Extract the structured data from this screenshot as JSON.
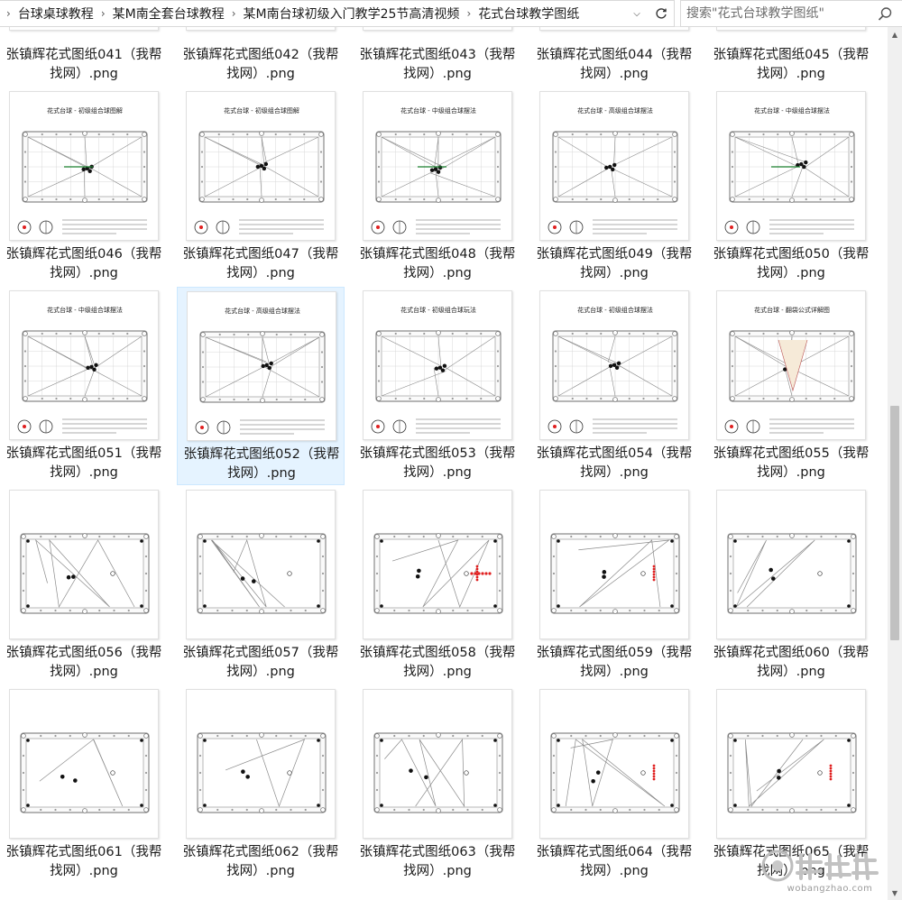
{
  "breadcrumb": [
    {
      "label": "台球桌球教程"
    },
    {
      "label": "某M南全套台球教程"
    },
    {
      "label": "某M南台球初级入门教学25节高清视频"
    },
    {
      "label": "花式台球教学图纸"
    }
  ],
  "search": {
    "placeholder": "搜索\"花式台球教学图纸\""
  },
  "files": [
    {
      "name": "张镇辉花式图纸041（我帮找网）.png",
      "kind": "diagram-bottom"
    },
    {
      "name": "张镇辉花式图纸042（我帮找网）.png",
      "kind": "diagram-bottom"
    },
    {
      "name": "张镇辉花式图纸043（我帮找网）.png",
      "kind": "diagram-bottom"
    },
    {
      "name": "张镇辉花式图纸044（我帮找网）.png",
      "kind": "diagram-bottom"
    },
    {
      "name": "张镇辉花式图纸045（我帮找网）.png",
      "kind": "diagram-bottom"
    },
    {
      "name": "张镇辉花式图纸046（我帮找网）.png",
      "kind": "diagram",
      "thumb_title": "花式台球 - 初级组合球图解"
    },
    {
      "name": "张镇辉花式图纸047（我帮找网）.png",
      "kind": "diagram",
      "thumb_title": "花式台球 - 初级组合球图解"
    },
    {
      "name": "张镇辉花式图纸048（我帮找网）.png",
      "kind": "diagram",
      "thumb_title": "花式台球 - 中级组合球摆法"
    },
    {
      "name": "张镇辉花式图纸049（我帮找网）.png",
      "kind": "diagram",
      "thumb_title": "花式台球 - 高级组合球摆法"
    },
    {
      "name": "张镇辉花式图纸050（我帮找网）.png",
      "kind": "diagram",
      "thumb_title": "花式台球 - 中级组合球摆法"
    },
    {
      "name": "张镇辉花式图纸051（我帮找网）.png",
      "kind": "diagram",
      "thumb_title": "花式台球 - 中级组合球摆法"
    },
    {
      "name": "张镇辉花式图纸052（我帮找网）.png",
      "kind": "diagram",
      "thumb_title": "花式台球 - 高级组合球摆法"
    },
    {
      "name": "张镇辉花式图纸053（我帮找网）.png",
      "kind": "diagram",
      "thumb_title": "花式台球 - 初级组合球玩法"
    },
    {
      "name": "张镇辉花式图纸054（我帮找网）.png",
      "kind": "diagram",
      "thumb_title": "花式台球 - 初级组合球摆法"
    },
    {
      "name": "张镇辉花式图纸055（我帮找网）.png",
      "kind": "diagram",
      "thumb_title": "花式台球 - 翻袋公式详解图"
    },
    {
      "name": "张镇辉花式图纸056（我帮找网）.png",
      "kind": "table"
    },
    {
      "name": "张镇辉花式图纸057（我帮找网）.png",
      "kind": "table"
    },
    {
      "name": "张镇辉花式图纸058（我帮找网）.png",
      "kind": "table"
    },
    {
      "name": "张镇辉花式图纸059（我帮找网）.png",
      "kind": "table"
    },
    {
      "name": "张镇辉花式图纸060（我帮找网）.png",
      "kind": "table"
    },
    {
      "name": "张镇辉花式图纸061（我帮找网）.png",
      "kind": "table"
    },
    {
      "name": "张镇辉花式图纸062（我帮找网）.png",
      "kind": "table"
    },
    {
      "name": "张镇辉花式图纸063（我帮找网）.png",
      "kind": "table"
    },
    {
      "name": "张镇辉花式图纸064（我帮找网）.png",
      "kind": "table"
    },
    {
      "name": "张镇辉花式图纸065（我帮找网）.png",
      "kind": "table"
    }
  ],
  "selected_index": 11,
  "watermark": {
    "text": "wobangzhao.com"
  },
  "colors": {
    "selection": "#e5f3ff",
    "ball_red": "#e02020",
    "line_green": "#1a7f2e"
  }
}
